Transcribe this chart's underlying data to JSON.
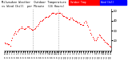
{
  "title": "Milwaukee Weather  Outdoor Temperature vs Wind Chill per Minute (24 Hours)",
  "bg_color": "#ffffff",
  "plot_bg": "#ffffff",
  "dot_color": "#ff0000",
  "legend_color1": "#ff0000",
  "legend_color2": "#0000ff",
  "legend_label1": "Outdoor Temp",
  "legend_label2": "Wind Chill",
  "ylim": [
    10,
    52
  ],
  "ytick_values": [
    20,
    30,
    40,
    50
  ],
  "ytick_labels": [
    "20",
    "30",
    "40",
    "50"
  ],
  "vline_x": [
    0.265,
    0.51
  ],
  "temp_data": [
    18,
    17,
    17,
    16,
    16,
    15,
    20,
    23,
    26,
    28,
    29,
    27,
    29,
    31,
    32,
    33,
    34,
    33,
    32,
    32,
    33,
    34,
    34,
    34,
    33,
    32,
    31,
    31,
    32,
    33,
    34,
    35,
    37,
    38,
    40,
    40,
    41,
    42,
    43,
    44,
    44,
    44,
    45,
    46,
    47,
    48,
    48,
    48,
    47,
    47,
    48,
    48,
    48,
    48,
    47,
    46,
    45,
    45,
    44,
    43,
    43,
    42,
    42,
    43,
    43,
    42,
    41,
    40,
    40,
    39,
    38,
    38,
    37,
    37,
    36,
    36,
    38,
    40,
    38,
    36,
    34,
    31,
    28,
    26,
    24,
    22,
    20,
    20,
    22,
    24,
    26,
    25,
    24,
    23,
    21,
    20,
    19,
    18,
    17,
    16,
    15,
    14
  ]
}
